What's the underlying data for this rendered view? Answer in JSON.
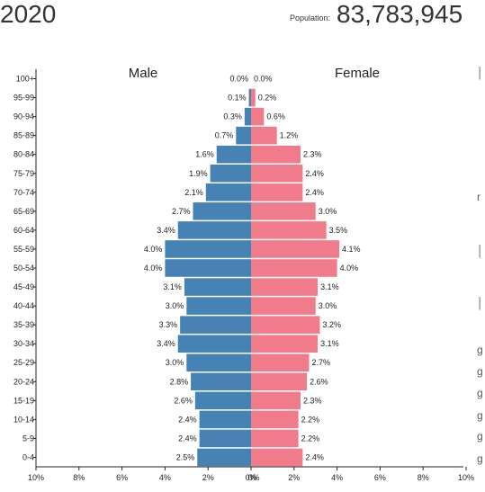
{
  "header": {
    "year": "2020",
    "population_label": "Population:",
    "population_value": "83,783,945"
  },
  "chart_data": {
    "type": "bar",
    "orientation": "horizontal",
    "subtype": "population-pyramid",
    "categories": [
      "0-4",
      "5-9",
      "10-14",
      "15-19",
      "20-24",
      "25-29",
      "30-34",
      "35-39",
      "40-44",
      "45-49",
      "50-54",
      "55-59",
      "60-64",
      "65-69",
      "70-74",
      "75-79",
      "80-84",
      "85-89",
      "90-94",
      "95-99",
      "100+"
    ],
    "series": [
      {
        "name": "Male",
        "color": "#4682b4",
        "values": [
          2.5,
          2.4,
          2.4,
          2.6,
          2.8,
          3.0,
          3.4,
          3.3,
          3.0,
          3.1,
          4.0,
          4.0,
          3.4,
          2.7,
          2.1,
          1.9,
          1.6,
          0.7,
          0.3,
          0.1,
          0.0
        ]
      },
      {
        "name": "Female",
        "color": "#f07b8a",
        "values": [
          2.4,
          2.2,
          2.2,
          2.3,
          2.6,
          2.7,
          3.1,
          3.2,
          3.0,
          3.1,
          4.0,
          4.1,
          3.5,
          3.0,
          2.4,
          2.4,
          2.3,
          1.2,
          0.6,
          0.2,
          0.0
        ]
      }
    ],
    "value_labels": {
      "Male": [
        "2.5%",
        "2.4%",
        "2.4%",
        "2.6%",
        "2.8%",
        "3.0%",
        "3.4%",
        "3.3%",
        "3.0%",
        "3.1%",
        "4.0%",
        "4.0%",
        "3.4%",
        "2.7%",
        "2.1%",
        "1.9%",
        "1.6%",
        "0.7%",
        "0.3%",
        "0.1%",
        "0.0%"
      ],
      "Female": [
        "2.4%",
        "2.2%",
        "2.2%",
        "2.3%",
        "2.6%",
        "2.7%",
        "3.1%",
        "3.2%",
        "3.0%",
        "3.1%",
        "4.0%",
        "4.1%",
        "3.5%",
        "3.0%",
        "2.4%",
        "2.4%",
        "2.3%",
        "1.2%",
        "0.6%",
        "0.2%",
        "0.0%"
      ]
    },
    "x_ticks_left": [
      "10%",
      "8%",
      "6%",
      "4%",
      "2%",
      "0%"
    ],
    "x_ticks_right": [
      "0%",
      "2%",
      "4%",
      "6%",
      "8%",
      "10%"
    ],
    "xlim": [
      0,
      10
    ],
    "grid": false,
    "xlabel": "",
    "ylabel": ""
  }
}
